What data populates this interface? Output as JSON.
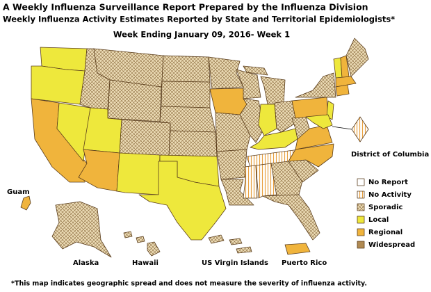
{
  "header": {
    "title": "A Weekly Influenza Surveillance Report Prepared by the Influenza Division",
    "subtitle": "Weekly Influenza Activity Estimates Reported by State and Territorial Epidemiologists*",
    "week": "Week Ending January 09, 2016- Week 1"
  },
  "legend": [
    "No Report",
    "No Activity",
    "Sporadic",
    "Local",
    "Regional",
    "Widespread"
  ],
  "labels": {
    "dc": "District of Columbia",
    "guam": "Guam",
    "alaska": "Alaska",
    "hawaii": "Hawaii",
    "usvi": "US Virgin Islands",
    "pr": "Puerto Rico"
  },
  "footnote": "*This map indicates geographic spread and does not measure the severity of influenza activity."
}
